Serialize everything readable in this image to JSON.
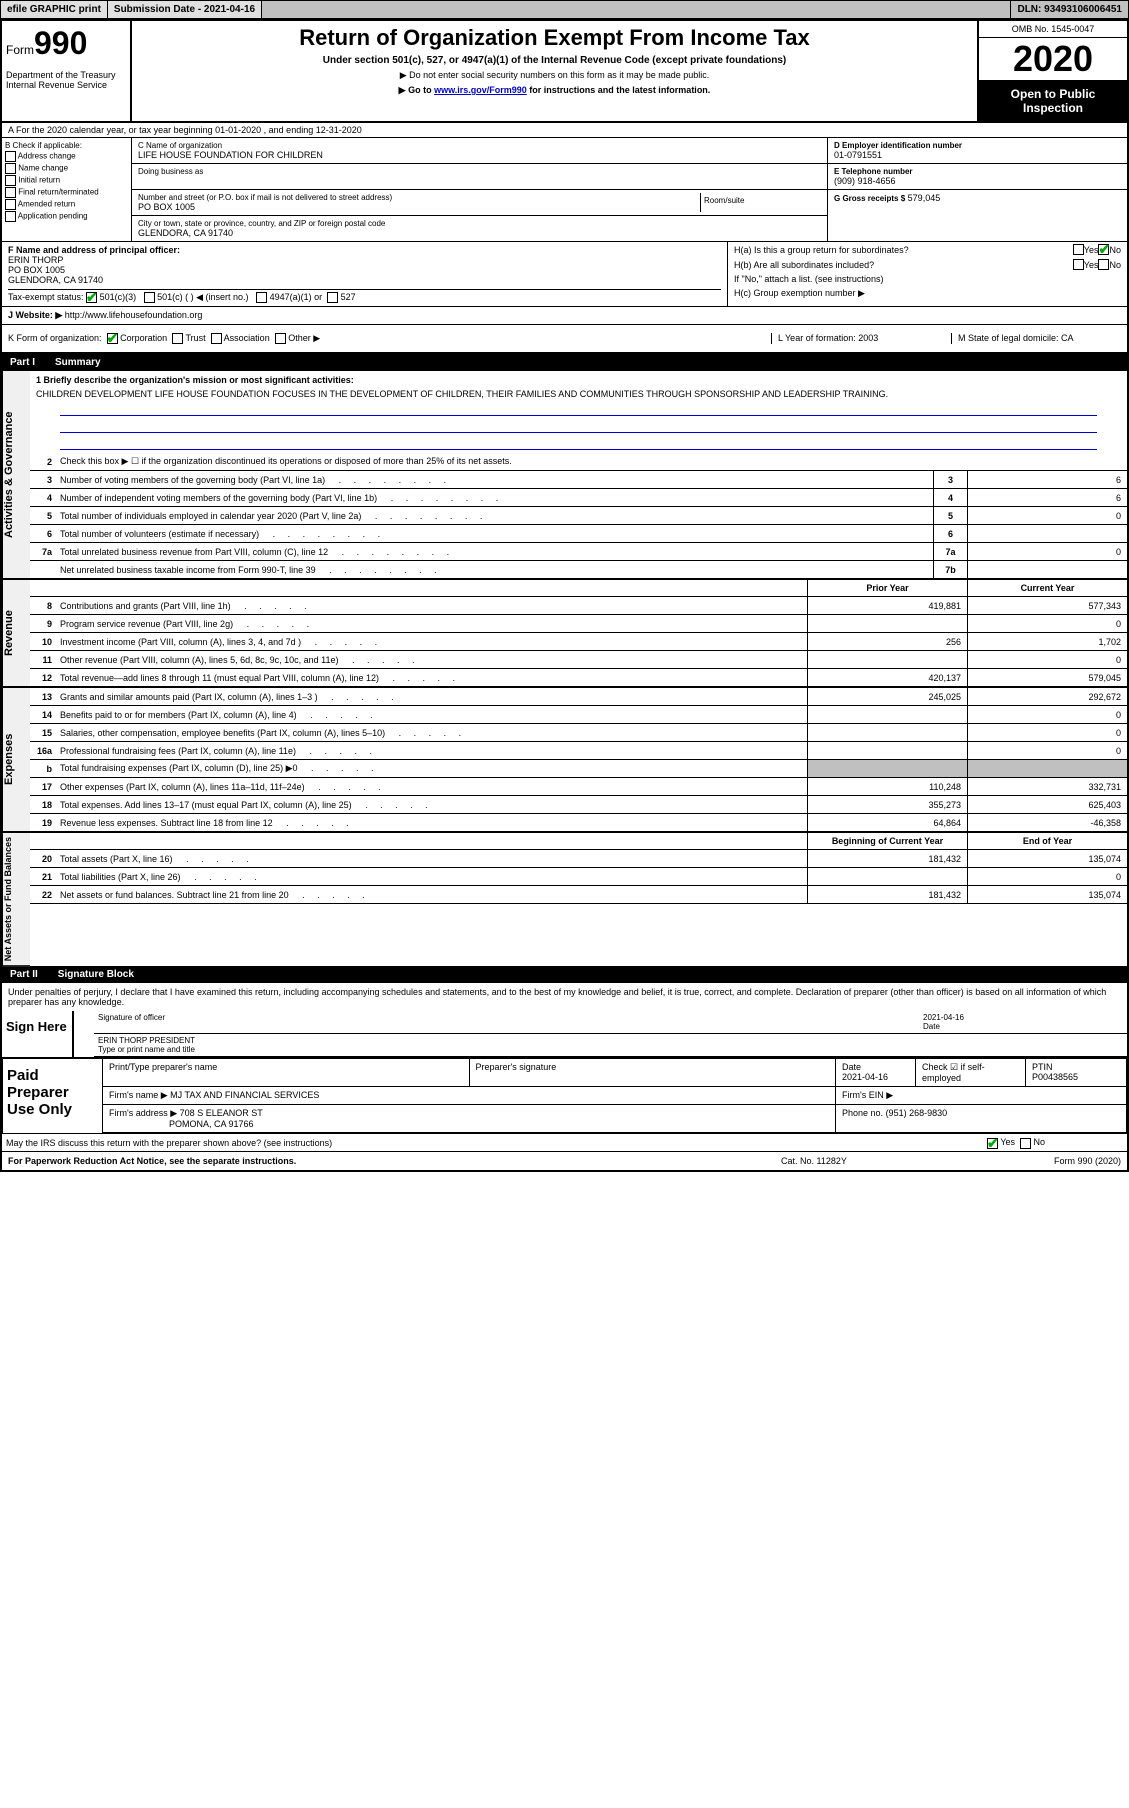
{
  "topbar": {
    "efile": "efile GRAPHIC print",
    "subdate_label": "Submission Date - 2021-04-16",
    "dln": "DLN: 93493106006451"
  },
  "header": {
    "form_prefix": "Form",
    "form_num": "990",
    "dept": "Department of the Treasury\nInternal Revenue Service",
    "title": "Return of Organization Exempt From Income Tax",
    "sub1": "Under section 501(c), 527, or 4947(a)(1) of the Internal Revenue Code (except private foundations)",
    "sub2": "▶ Do not enter social security numbers on this form as it may be made public.",
    "sub3_pre": "▶ Go to ",
    "sub3_link": "www.irs.gov/Form990",
    "sub3_post": " for instructions and the latest information.",
    "omb": "OMB No. 1545-0047",
    "year": "2020",
    "inspect": "Open to Public Inspection"
  },
  "rowA": "A For the 2020 calendar year, or tax year beginning 01-01-2020    , and ending 12-31-2020",
  "boxB": {
    "label": "B Check if applicable:",
    "opts": [
      "Address change",
      "Name change",
      "Initial return",
      "Final return/terminated",
      "Amended return",
      "Application pending"
    ]
  },
  "boxC": {
    "name_lbl": "C Name of organization",
    "name": "LIFE HOUSE FOUNDATION FOR CHILDREN",
    "dba_lbl": "Doing business as",
    "addr_lbl": "Number and street (or P.O. box if mail is not delivered to street address)",
    "room_lbl": "Room/suite",
    "addr": "PO BOX 1005",
    "city_lbl": "City or town, state or province, country, and ZIP or foreign postal code",
    "city": "GLENDORA, CA  91740"
  },
  "boxD": {
    "ein_lbl": "D Employer identification number",
    "ein": "01-0791551",
    "tel_lbl": "E Telephone number",
    "tel": "(909) 918-4656",
    "gross_lbl": "G Gross receipts $",
    "gross": "579,045"
  },
  "boxF": {
    "lbl": "F  Name and address of principal officer:",
    "name": "ERIN THORP",
    "addr1": "PO BOX 1005",
    "addr2": "GLENDORA, CA  91740"
  },
  "boxH": {
    "a": "H(a)  Is this a group return for subordinates?",
    "b": "H(b)  Are all subordinates included?",
    "b_note": "If \"No,\" attach a list. (see instructions)",
    "c": "H(c)  Group exemption number ▶"
  },
  "rowI": {
    "lbl": "Tax-exempt status:",
    "o1": "501(c)(3)",
    "o2": "501(c) (  ) ◀ (insert no.)",
    "o3": "4947(a)(1) or",
    "o4": "527"
  },
  "rowJ": {
    "lbl": "J  Website: ▶",
    "val": "http://www.lifehousefoundation.org"
  },
  "rowK": {
    "lbl": "K Form of organization:",
    "o1": "Corporation",
    "o2": "Trust",
    "o3": "Association",
    "o4": "Other ▶",
    "L": "L Year of formation: 2003",
    "M": "M State of legal domicile: CA"
  },
  "part1": {
    "hdr_num": "Part I",
    "hdr_txt": "Summary",
    "q1": "1  Briefly describe the organization's mission or most significant activities:",
    "mission": "CHILDREN DEVELOPMENT LIFE HOUSE FOUNDATION FOCUSES IN THE DEVELOPMENT OF CHILDREN, THEIR FAMILIES AND COMMUNITIES THROUGH SPONSORSHIP AND LEADERSHIP TRAINING.",
    "q2": "Check this box ▶ ☐  if the organization discontinued its operations or disposed of more than 25% of its net assets.",
    "lines": [
      {
        "n": "3",
        "t": "Number of voting members of the governing body (Part VI, line 1a)",
        "box": "3",
        "v": "6"
      },
      {
        "n": "4",
        "t": "Number of independent voting members of the governing body (Part VI, line 1b)",
        "box": "4",
        "v": "6"
      },
      {
        "n": "5",
        "t": "Total number of individuals employed in calendar year 2020 (Part V, line 2a)",
        "box": "5",
        "v": "0"
      },
      {
        "n": "6",
        "t": "Total number of volunteers (estimate if necessary)",
        "box": "6",
        "v": ""
      },
      {
        "n": "7a",
        "t": "Total unrelated business revenue from Part VIII, column (C), line 12",
        "box": "7a",
        "v": "0"
      },
      {
        "n": "",
        "t": "Net unrelated business taxable income from Form 990-T, line 39",
        "box": "7b",
        "v": ""
      }
    ],
    "col_prior": "Prior Year",
    "col_curr": "Current Year",
    "rev_lines": [
      {
        "n": "8",
        "t": "Contributions and grants (Part VIII, line 1h)",
        "p": "419,881",
        "c": "577,343"
      },
      {
        "n": "9",
        "t": "Program service revenue (Part VIII, line 2g)",
        "p": "",
        "c": "0"
      },
      {
        "n": "10",
        "t": "Investment income (Part VIII, column (A), lines 3, 4, and 7d )",
        "p": "256",
        "c": "1,702"
      },
      {
        "n": "11",
        "t": "Other revenue (Part VIII, column (A), lines 5, 6d, 8c, 9c, 10c, and 11e)",
        "p": "",
        "c": "0"
      },
      {
        "n": "12",
        "t": "Total revenue—add lines 8 through 11 (must equal Part VIII, column (A), line 12)",
        "p": "420,137",
        "c": "579,045"
      }
    ],
    "exp_lines": [
      {
        "n": "13",
        "t": "Grants and similar amounts paid (Part IX, column (A), lines 1–3 )",
        "p": "245,025",
        "c": "292,672"
      },
      {
        "n": "14",
        "t": "Benefits paid to or for members (Part IX, column (A), line 4)",
        "p": "",
        "c": "0"
      },
      {
        "n": "15",
        "t": "Salaries, other compensation, employee benefits (Part IX, column (A), lines 5–10)",
        "p": "",
        "c": "0"
      },
      {
        "n": "16a",
        "t": "Professional fundraising fees (Part IX, column (A), line 11e)",
        "p": "",
        "c": "0"
      },
      {
        "n": "b",
        "t": "Total fundraising expenses (Part IX, column (D), line 25) ▶0",
        "p": "SHADE",
        "c": "SHADE"
      },
      {
        "n": "17",
        "t": "Other expenses (Part IX, column (A), lines 11a–11d, 11f–24e)",
        "p": "110,248",
        "c": "332,731"
      },
      {
        "n": "18",
        "t": "Total expenses. Add lines 13–17 (must equal Part IX, column (A), line 25)",
        "p": "355,273",
        "c": "625,403"
      },
      {
        "n": "19",
        "t": "Revenue less expenses. Subtract line 18 from line 12",
        "p": "64,864",
        "c": "-46,358"
      }
    ],
    "col_begin": "Beginning of Current Year",
    "col_end": "End of Year",
    "net_lines": [
      {
        "n": "20",
        "t": "Total assets (Part X, line 16)",
        "p": "181,432",
        "c": "135,074"
      },
      {
        "n": "21",
        "t": "Total liabilities (Part X, line 26)",
        "p": "",
        "c": "0"
      },
      {
        "n": "22",
        "t": "Net assets or fund balances. Subtract line 21 from line 20",
        "p": "181,432",
        "c": "135,074"
      }
    ]
  },
  "part2": {
    "hdr_num": "Part II",
    "hdr_txt": "Signature Block",
    "decl": "Under penalties of perjury, I declare that I have examined this return, including accompanying schedules and statements, and to the best of my knowledge and belief, it is true, correct, and complete. Declaration of preparer (other than officer) is based on all information of which preparer has any knowledge.",
    "sign_here": "Sign Here",
    "sig_officer_lbl": "Signature of officer",
    "date_lbl": "Date",
    "date_val": "2021-04-16",
    "name_title": "ERIN THORP  PRESIDENT",
    "name_title_lbl": "Type or print name and title",
    "paid": "Paid Preparer Use Only",
    "prep_name_lbl": "Print/Type preparer's name",
    "prep_sig_lbl": "Preparer's signature",
    "prep_date_lbl": "Date",
    "prep_date": "2021-04-16",
    "check_self": "Check ☑ if self-employed",
    "ptin_lbl": "PTIN",
    "ptin": "P00438565",
    "firm_name_lbl": "Firm's name    ▶",
    "firm_name": "MJ TAX AND FINANCIAL SERVICES",
    "firm_ein_lbl": "Firm's EIN ▶",
    "firm_addr_lbl": "Firm's address ▶",
    "firm_addr1": "708 S ELEANOR ST",
    "firm_addr2": "POMONA, CA  91766",
    "phone_lbl": "Phone no.",
    "phone": "(951) 268-9830",
    "discuss": "May the IRS discuss this return with the preparer shown above? (see instructions)",
    "footer_left": "For Paperwork Reduction Act Notice, see the separate instructions.",
    "footer_mid": "Cat. No. 11282Y",
    "footer_right": "Form 990 (2020)"
  }
}
